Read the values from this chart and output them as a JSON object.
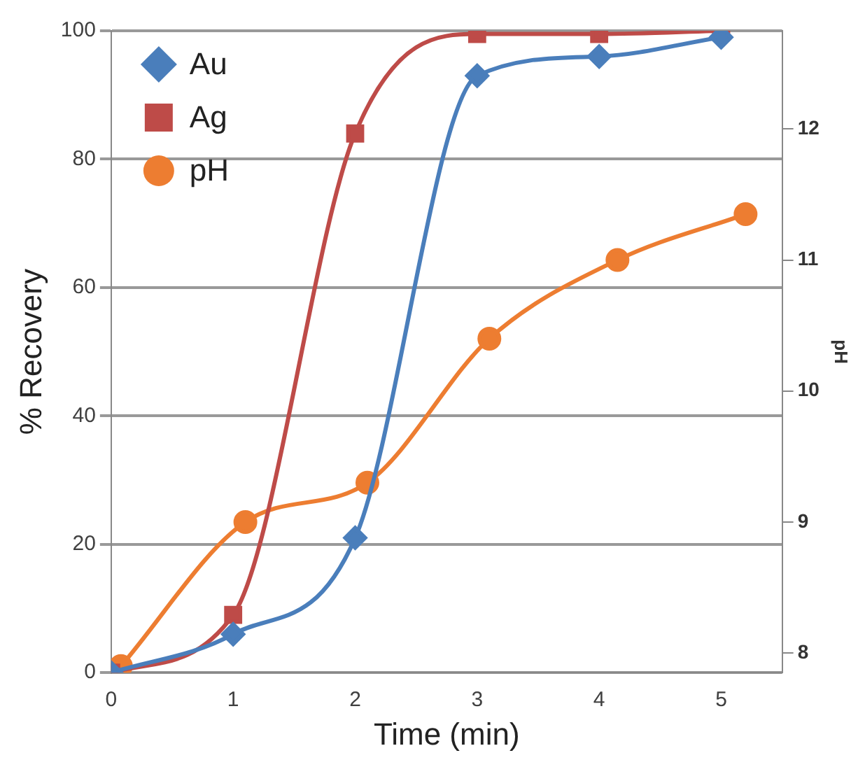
{
  "chart_data": {
    "type": "line",
    "xlabel": "Time (min)",
    "ylabel": "% Recovery",
    "y2label": "pH",
    "xlim": [
      0,
      5.5
    ],
    "xticks": [
      0,
      1,
      2,
      3,
      4,
      5
    ],
    "ylim": [
      0,
      100
    ],
    "yticks": [
      0,
      20,
      40,
      60,
      80,
      100
    ],
    "y2lim": [
      7.85,
      12.75
    ],
    "y2ticks": [
      8,
      9,
      10,
      11,
      12
    ],
    "grid": "y",
    "legend": "top left",
    "series": [
      {
        "name": "Au",
        "color": "#4a7ebb",
        "marker": "diamond",
        "x": [
          0,
          1,
          2,
          3,
          4,
          5
        ],
        "values": [
          0,
          6,
          21,
          93,
          96,
          99
        ]
      },
      {
        "name": "Ag",
        "color": "#be4b48",
        "marker": "square",
        "x": [
          0,
          1,
          2,
          3,
          4,
          5
        ],
        "values": [
          0,
          9,
          84,
          99.5,
          99.5,
          100
        ]
      },
      {
        "name": "pH",
        "color": "#ed7d31",
        "marker": "circle",
        "axis": "y2",
        "x": [
          0.08,
          1.1,
          2.1,
          3.1,
          4.15,
          5.2
        ],
        "values": [
          7.9,
          9.0,
          9.3,
          10.4,
          11.0,
          11.35
        ]
      }
    ]
  }
}
